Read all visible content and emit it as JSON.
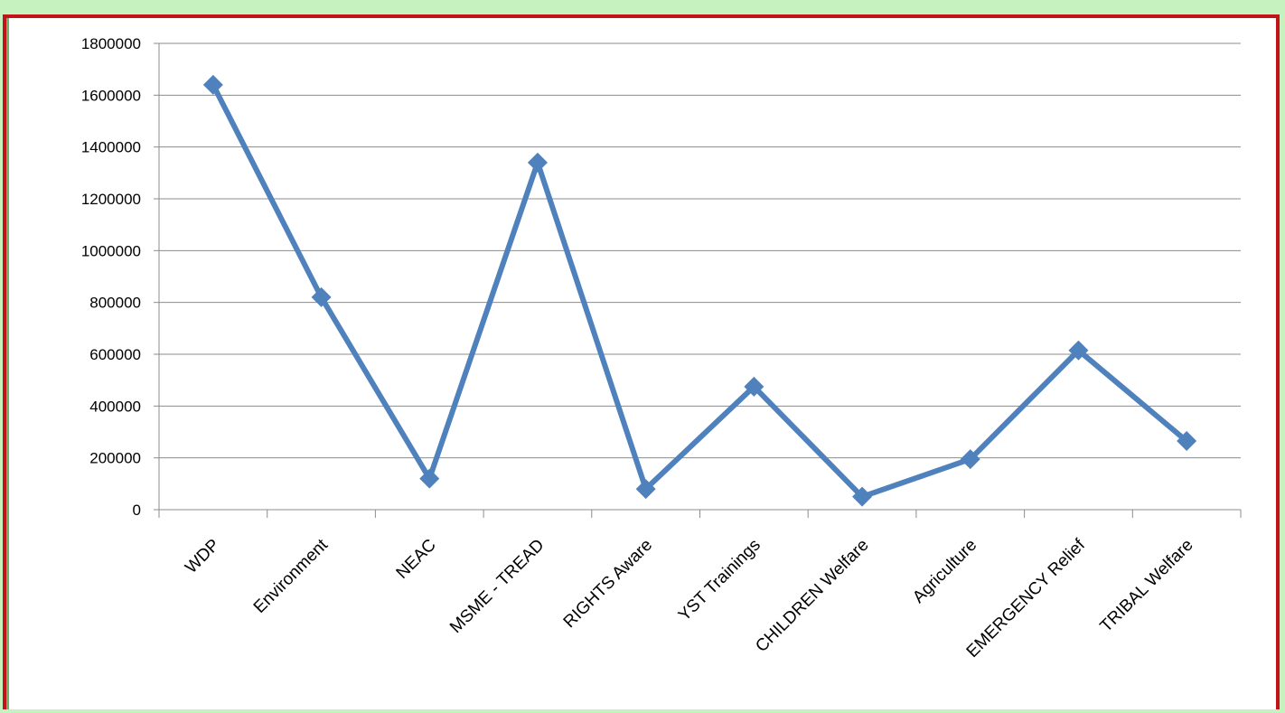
{
  "chart_data": {
    "type": "line",
    "categories": [
      "WDP",
      "Environment",
      "NEAC",
      "MSME - TREAD",
      "RIGHTS Aware",
      "YST Trainings",
      "CHILDREN Welfare",
      "Agriculture",
      "EMERGENCY Relief",
      "TRIBAL Welfare"
    ],
    "series": [
      {
        "values": [
          1640000,
          820000,
          120000,
          1340000,
          80000,
          475000,
          50000,
          195000,
          615000,
          265000
        ]
      }
    ],
    "ylim": [
      0,
      1800000
    ],
    "yticks": [
      0,
      200000,
      400000,
      600000,
      800000,
      1000000,
      1200000,
      1400000,
      1600000,
      1800000
    ],
    "grid": true,
    "line_color": "#4f81bd",
    "background_color": "#c6f2c0",
    "frame_color": "#c0141a"
  }
}
